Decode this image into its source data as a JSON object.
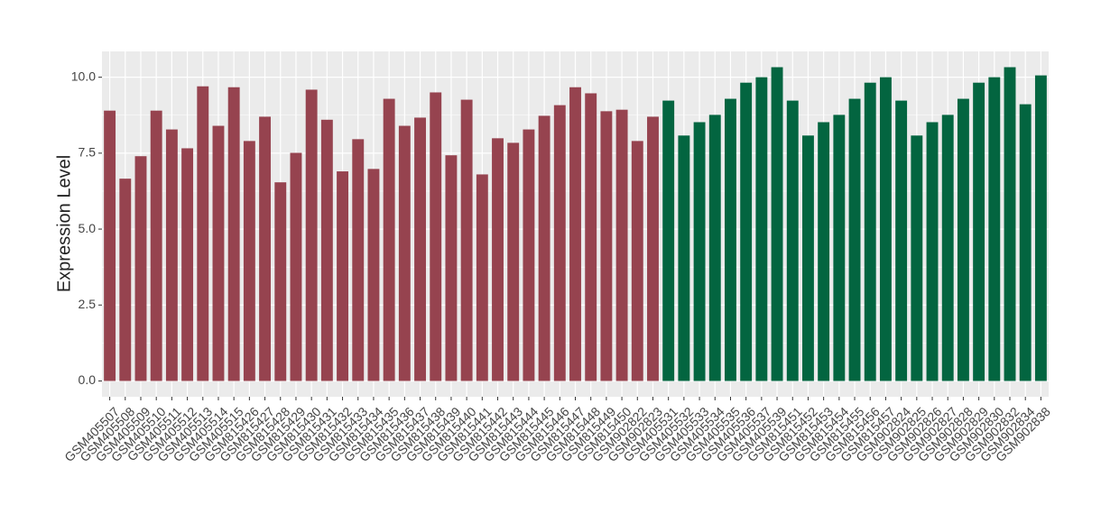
{
  "chart_data": {
    "type": "bar",
    "y_label": "Expression Level",
    "categories": [
      "GSM405507",
      "GSM405508",
      "GSM405509",
      "GSM405510",
      "GSM405511",
      "GSM405512",
      "GSM405513",
      "GSM405514",
      "GSM405515",
      "GSM815426",
      "GSM815427",
      "GSM815428",
      "GSM815429",
      "GSM815430",
      "GSM815431",
      "GSM815432",
      "GSM815433",
      "GSM815434",
      "GSM815435",
      "GSM815436",
      "GSM815437",
      "GSM815438",
      "GSM815439",
      "GSM815440",
      "GSM815441",
      "GSM815442",
      "GSM815443",
      "GSM815444",
      "GSM815445",
      "GSM815446",
      "GSM815447",
      "GSM815448",
      "GSM815449",
      "GSM815450",
      "GSM902822",
      "GSM902823",
      "GSM405531",
      "GSM405532",
      "GSM405533",
      "GSM405534",
      "GSM405535",
      "GSM405536",
      "GSM405537",
      "GSM405539",
      "GSM815451",
      "GSM815452",
      "GSM815453",
      "GSM815454",
      "GSM815455",
      "GSM815456",
      "GSM815457",
      "GSM902824",
      "GSM902825",
      "GSM902826",
      "GSM902827",
      "GSM902828",
      "GSM902829",
      "GSM902830",
      "GSM902832",
      "GSM902834",
      "GSM902838"
    ],
    "values": [
      8.9,
      6.66,
      7.4,
      8.9,
      8.28,
      7.66,
      9.7,
      8.4,
      9.67,
      7.9,
      8.7,
      6.54,
      7.51,
      9.59,
      8.6,
      6.9,
      7.96,
      6.98,
      9.29,
      8.4,
      8.67,
      9.5,
      7.43,
      9.26,
      6.8,
      7.99,
      7.84,
      8.28,
      8.73,
      9.08,
      9.67,
      9.47,
      8.88,
      8.93,
      7.9,
      8.7,
      9.23,
      8.08,
      8.52,
      8.76,
      9.29,
      9.82,
      10.0,
      10.33,
      9.23,
      8.08,
      8.52,
      8.76,
      9.29,
      9.82,
      10.0,
      9.23,
      8.08,
      8.52,
      8.76,
      9.29,
      9.82,
      10.0,
      10.33,
      9.11,
      10.06
    ],
    "colors": [
      "#96434f",
      "#96434f",
      "#96434f",
      "#96434f",
      "#96434f",
      "#96434f",
      "#96434f",
      "#96434f",
      "#96434f",
      "#96434f",
      "#96434f",
      "#96434f",
      "#96434f",
      "#96434f",
      "#96434f",
      "#96434f",
      "#96434f",
      "#96434f",
      "#96434f",
      "#96434f",
      "#96434f",
      "#96434f",
      "#96434f",
      "#96434f",
      "#96434f",
      "#96434f",
      "#96434f",
      "#96434f",
      "#96434f",
      "#96434f",
      "#96434f",
      "#96434f",
      "#96434f",
      "#96434f",
      "#96434f",
      "#96434f",
      "#036540",
      "#036540",
      "#036540",
      "#036540",
      "#036540",
      "#036540",
      "#036540",
      "#036540",
      "#036540",
      "#036540",
      "#036540",
      "#036540",
      "#036540",
      "#036540",
      "#036540",
      "#036540",
      "#036540",
      "#036540",
      "#036540",
      "#036540",
      "#036540",
      "#036540",
      "#036540",
      "#036540",
      "#036540"
    ],
    "ylim": [
      -0.52,
      10.85
    ],
    "yticks": [
      {
        "value": 0,
        "label": "0.0"
      },
      {
        "value": 2.5,
        "label": "2.5"
      },
      {
        "value": 5,
        "label": "5.0"
      },
      {
        "value": 7.5,
        "label": "7.5"
      },
      {
        "value": 10,
        "label": "10.0"
      }
    ],
    "grid": true
  }
}
